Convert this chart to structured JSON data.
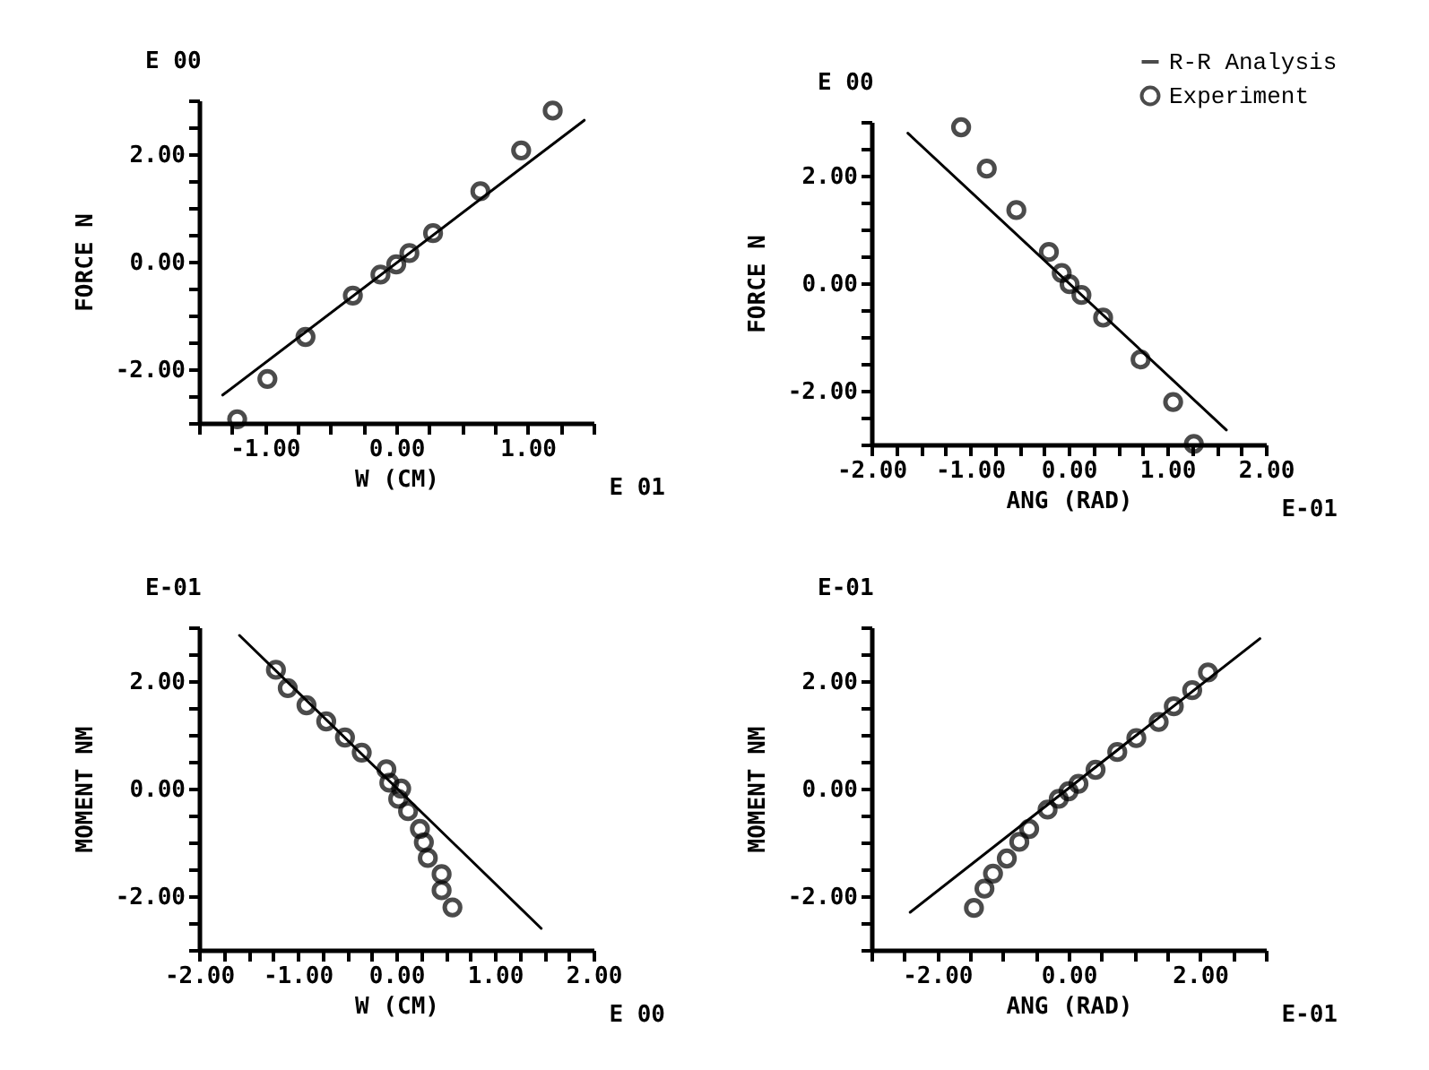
{
  "chart_data": [
    {
      "type": "scatter",
      "xlabel": "W (CM)",
      "ylabel": "FORCE N",
      "annotations": [
        "E 00",
        "E 01"
      ],
      "xlim": [
        -1.5,
        1.5
      ],
      "ylim": [
        -3,
        3
      ],
      "xticks": [
        {
          "value": -1.5,
          "label": null
        },
        {
          "value": -1.25,
          "label": null
        },
        {
          "value": -1,
          "label": "-1.00"
        },
        {
          "value": -0.75,
          "label": null
        },
        {
          "value": -0.5,
          "label": null
        },
        {
          "value": -0.25,
          "label": null
        },
        {
          "value": 0,
          "label": "0.00"
        },
        {
          "value": 0.25,
          "label": null
        },
        {
          "value": 0.5,
          "label": null
        },
        {
          "value": 0.75,
          "label": null
        },
        {
          "value": 1,
          "label": "1.00"
        },
        {
          "value": 1.25,
          "label": null
        },
        {
          "value": 1.5,
          "label": null
        }
      ],
      "yticks": [
        {
          "value": -3,
          "label": null
        },
        {
          "value": -2.5,
          "label": null
        },
        {
          "value": -2,
          "label": "-2.00"
        },
        {
          "value": -1.5,
          "label": null
        },
        {
          "value": -1,
          "label": null
        },
        {
          "value": -0.5,
          "label": null
        },
        {
          "value": 0,
          "label": "0.00"
        },
        {
          "value": 0.5,
          "label": null
        },
        {
          "value": 1,
          "label": null
        },
        {
          "value": 1.5,
          "label": null
        },
        {
          "value": 2,
          "label": "2.00"
        },
        {
          "value": 2.5,
          "label": null
        },
        {
          "value": 3,
          "label": null
        }
      ],
      "grid": false,
      "line_style": "solid",
      "series": [
        {
          "type": "line",
          "color": "#000000",
          "x": [
            -1.32,
            1.43
          ],
          "values": [
            -2.48,
            2.63
          ]
        },
        {
          "type": "scatter",
          "marker": "circle",
          "color": "#000000",
          "x": [
            -1.21,
            -0.98,
            -0.69,
            -0.33,
            -0.12,
            0,
            0.1,
            0.28,
            0.64,
            0.95,
            1.19
          ],
          "values": [
            -2.93,
            -2.18,
            -1.4,
            -0.63,
            -0.24,
            -0.05,
            0.16,
            0.53,
            1.31,
            2.07,
            2.81
          ]
        }
      ]
    },
    {
      "type": "scatter",
      "xlabel": "ANG (RAD)",
      "ylabel": "FORCE N",
      "annotations": [
        "E 00",
        "E-01"
      ],
      "xlim": [
        -2,
        2
      ],
      "ylim": [
        -3,
        3
      ],
      "xticks": [
        {
          "value": -2,
          "label": "-2.00"
        },
        {
          "value": -1.75,
          "label": null
        },
        {
          "value": -1.5,
          "label": null
        },
        {
          "value": -1.25,
          "label": null
        },
        {
          "value": -1,
          "label": "-1.00"
        },
        {
          "value": -0.75,
          "label": null
        },
        {
          "value": -0.5,
          "label": null
        },
        {
          "value": -0.25,
          "label": null
        },
        {
          "value": 0,
          "label": "0.00"
        },
        {
          "value": 0.25,
          "label": null
        },
        {
          "value": 0.5,
          "label": null
        },
        {
          "value": 0.75,
          "label": null
        },
        {
          "value": 1,
          "label": "1.00"
        },
        {
          "value": 1.25,
          "label": null
        },
        {
          "value": 1.5,
          "label": null
        },
        {
          "value": 1.75,
          "label": null
        },
        {
          "value": 2,
          "label": "2.00"
        }
      ],
      "yticks": [
        {
          "value": -3,
          "label": null
        },
        {
          "value": -2.5,
          "label": null
        },
        {
          "value": -2,
          "label": "-2.00"
        },
        {
          "value": -1.5,
          "label": null
        },
        {
          "value": -1,
          "label": null
        },
        {
          "value": -0.5,
          "label": null
        },
        {
          "value": 0,
          "label": "0.00"
        },
        {
          "value": 0.5,
          "label": null
        },
        {
          "value": 1,
          "label": null
        },
        {
          "value": 1.5,
          "label": null
        },
        {
          "value": 2,
          "label": "2.00"
        },
        {
          "value": 2.5,
          "label": null
        },
        {
          "value": 3,
          "label": null
        }
      ],
      "grid": false,
      "legend": "top right",
      "line_style": "solid",
      "series": [
        {
          "type": "line",
          "name": "R-R Analysis",
          "color": "#000000",
          "x": [
            -1.63,
            1.6
          ],
          "values": [
            2.79,
            -2.73
          ]
        },
        {
          "type": "scatter",
          "name": "Experiment",
          "marker": "circle",
          "color": "#000000",
          "x": [
            -1.09,
            -0.83,
            -0.53,
            -0.2,
            -0.07,
            0.01,
            0.13,
            0.35,
            0.73,
            1.06,
            1.27
          ],
          "values": [
            2.9,
            2.13,
            1.36,
            0.58,
            0.19,
            -0.02,
            -0.22,
            -0.64,
            -1.42,
            -2.21,
            -2.99
          ]
        }
      ]
    },
    {
      "type": "scatter",
      "xlabel": "W (CM)",
      "ylabel": "MOMENT NM",
      "annotations": [
        "E-01",
        "E 00"
      ],
      "xlim": [
        -2,
        2
      ],
      "ylim": [
        -3,
        3
      ],
      "xticks": [
        {
          "value": -2,
          "label": "-2.00"
        },
        {
          "value": -1.75,
          "label": null
        },
        {
          "value": -1.5,
          "label": null
        },
        {
          "value": -1.25,
          "label": null
        },
        {
          "value": -1,
          "label": "-1.00"
        },
        {
          "value": -0.75,
          "label": null
        },
        {
          "value": -0.5,
          "label": null
        },
        {
          "value": -0.25,
          "label": null
        },
        {
          "value": 0,
          "label": "0.00"
        },
        {
          "value": 0.25,
          "label": null
        },
        {
          "value": 0.5,
          "label": null
        },
        {
          "value": 0.75,
          "label": null
        },
        {
          "value": 1,
          "label": "1.00"
        },
        {
          "value": 1.25,
          "label": null
        },
        {
          "value": 1.5,
          "label": null
        },
        {
          "value": 1.75,
          "label": null
        },
        {
          "value": 2,
          "label": "2.00"
        }
      ],
      "yticks": [
        {
          "value": -3,
          "label": null
        },
        {
          "value": -2.5,
          "label": null
        },
        {
          "value": -2,
          "label": "-2.00"
        },
        {
          "value": -1.5,
          "label": null
        },
        {
          "value": -1,
          "label": null
        },
        {
          "value": -0.5,
          "label": null
        },
        {
          "value": 0,
          "label": "0.00"
        },
        {
          "value": 0.5,
          "label": null
        },
        {
          "value": 1,
          "label": null
        },
        {
          "value": 1.5,
          "label": null
        },
        {
          "value": 2,
          "label": "2.00"
        },
        {
          "value": 2.5,
          "label": null
        },
        {
          "value": 3,
          "label": null
        }
      ],
      "grid": false,
      "line_style": "solid",
      "series": [
        {
          "type": "line",
          "color": "#000000",
          "x": [
            -1.59,
            1.47
          ],
          "values": [
            2.85,
            -2.6
          ]
        },
        {
          "type": "scatter",
          "marker": "circle",
          "color": "#000000",
          "x": [
            -1.22,
            -1.1,
            -0.91,
            -0.71,
            -0.52,
            -0.35,
            -0.1,
            -0.07,
            0.05,
            0.02,
            0.12,
            0.24,
            0.28,
            0.32,
            0.46,
            0.46,
            0.57
          ],
          "values": [
            2.21,
            1.87,
            1.55,
            1.25,
            0.95,
            0.67,
            0.36,
            0.11,
            0,
            -0.19,
            -0.42,
            -0.75,
            -1,
            -1.29,
            -1.59,
            -1.89,
            -2.21
          ]
        }
      ]
    },
    {
      "type": "scatter",
      "xlabel": "ANG (RAD)",
      "ylabel": "MOMENT NM",
      "annotations": [
        "E-01",
        "E-01"
      ],
      "xlim": [
        -3,
        3
      ],
      "ylim": [
        -3,
        3
      ],
      "xticks": [
        {
          "value": -3,
          "label": null
        },
        {
          "value": -2.5,
          "label": null
        },
        {
          "value": -2,
          "label": "-2.00"
        },
        {
          "value": -1.5,
          "label": null
        },
        {
          "value": -1,
          "label": null
        },
        {
          "value": -0.5,
          "label": null
        },
        {
          "value": 0,
          "label": "0.00"
        },
        {
          "value": 0.5,
          "label": null
        },
        {
          "value": 1,
          "label": null
        },
        {
          "value": 1.5,
          "label": null
        },
        {
          "value": 2,
          "label": "2.00"
        },
        {
          "value": 2.5,
          "label": null
        },
        {
          "value": 3,
          "label": null
        }
      ],
      "yticks": [
        {
          "value": -3,
          "label": null
        },
        {
          "value": -2.5,
          "label": null
        },
        {
          "value": -2,
          "label": "-2.00"
        },
        {
          "value": -1.5,
          "label": null
        },
        {
          "value": -1,
          "label": null
        },
        {
          "value": -0.5,
          "label": null
        },
        {
          "value": 0,
          "label": "0.00"
        },
        {
          "value": 0.5,
          "label": null
        },
        {
          "value": 1,
          "label": null
        },
        {
          "value": 1.5,
          "label": null
        },
        {
          "value": 2,
          "label": "2.00"
        },
        {
          "value": 2.5,
          "label": null
        },
        {
          "value": 3,
          "label": null
        }
      ],
      "grid": false,
      "line_style": "solid",
      "series": [
        {
          "type": "line",
          "color": "#000000",
          "x": [
            -2.41,
            2.91
          ],
          "values": [
            -2.3,
            2.79
          ]
        },
        {
          "type": "scatter",
          "marker": "circle",
          "color": "#000000",
          "x": [
            -1.44,
            -1.28,
            -1.15,
            -0.94,
            -0.75,
            -0.6,
            -0.32,
            -0.15,
            0,
            0.15,
            0.41,
            0.74,
            1.03,
            1.37,
            1.6,
            1.88,
            2.12
          ],
          "values": [
            -2.22,
            -1.86,
            -1.58,
            -1.3,
            -0.99,
            -0.75,
            -0.39,
            -0.19,
            -0.05,
            0.09,
            0.35,
            0.68,
            0.94,
            1.24,
            1.53,
            1.83,
            2.16
          ]
        }
      ]
    }
  ]
}
